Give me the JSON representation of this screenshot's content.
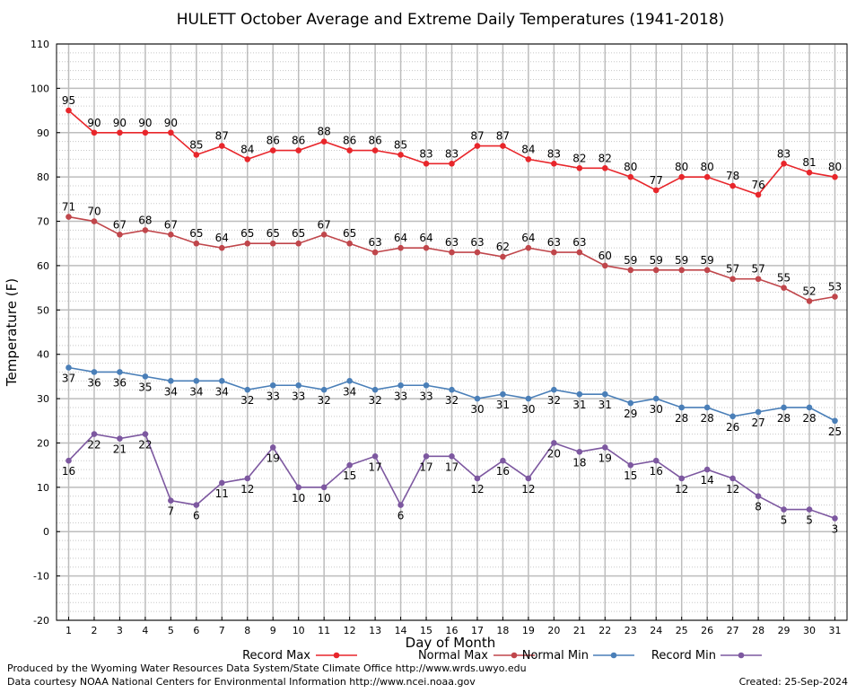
{
  "chart_data": {
    "type": "line",
    "title": "HULETT October Average and Extreme Daily Temperatures (1941-2018)",
    "xlabel": "Day of Month",
    "ylabel": "Temperature (F)",
    "xlim": [
      1,
      31
    ],
    "ylim": [
      -20,
      110
    ],
    "yticks": [
      -20,
      -10,
      0,
      10,
      20,
      30,
      40,
      50,
      60,
      70,
      80,
      90,
      100,
      110
    ],
    "x": [
      1,
      2,
      3,
      4,
      5,
      6,
      7,
      8,
      9,
      10,
      11,
      12,
      13,
      14,
      15,
      16,
      17,
      18,
      19,
      20,
      21,
      22,
      23,
      24,
      25,
      26,
      27,
      28,
      29,
      30,
      31
    ],
    "grid": true,
    "legend_position": "bottom",
    "series": [
      {
        "name": "Record Max",
        "color": "#e8262b",
        "label_position": "above",
        "values": [
          95,
          90,
          90,
          90,
          90,
          85,
          87,
          84,
          86,
          86,
          88,
          86,
          86,
          85,
          83,
          83,
          87,
          87,
          84,
          83,
          82,
          82,
          80,
          77,
          80,
          80,
          78,
          76,
          83,
          81,
          80
        ]
      },
      {
        "name": "Normal Max",
        "color": "#c0464b",
        "label_position": "above",
        "values": [
          71,
          70,
          67,
          68,
          67,
          65,
          64,
          65,
          65,
          65,
          67,
          65,
          63,
          64,
          64,
          63,
          63,
          62,
          64,
          63,
          63,
          60,
          59,
          59,
          59,
          59,
          57,
          57,
          55,
          52,
          53
        ]
      },
      {
        "name": "Normal Min",
        "color": "#4a7fb8",
        "label_position": "below",
        "values": [
          37,
          36,
          36,
          35,
          34,
          34,
          34,
          32,
          33,
          33,
          32,
          34,
          32,
          33,
          33,
          32,
          30,
          31,
          30,
          32,
          31,
          31,
          29,
          30,
          28,
          28,
          26,
          27,
          28,
          28,
          25
        ]
      },
      {
        "name": "Record Min",
        "color": "#7d58a0",
        "label_position": "below",
        "values": [
          16,
          22,
          21,
          22,
          7,
          6,
          11,
          12,
          19,
          10,
          10,
          15,
          17,
          6,
          17,
          17,
          12,
          16,
          12,
          20,
          18,
          19,
          15,
          16,
          12,
          14,
          12,
          8,
          5,
          5,
          3
        ]
      }
    ]
  },
  "footer": {
    "produced_by": "Produced by the Wyoming Water Resources Data System/State Climate Office http://www.wrds.uwyo.edu",
    "data_courtesy": "Data courtesy NOAA National Centers for Environmental Information http://www.ncei.noaa.gov",
    "created": "Created:  25-Sep-2024"
  }
}
